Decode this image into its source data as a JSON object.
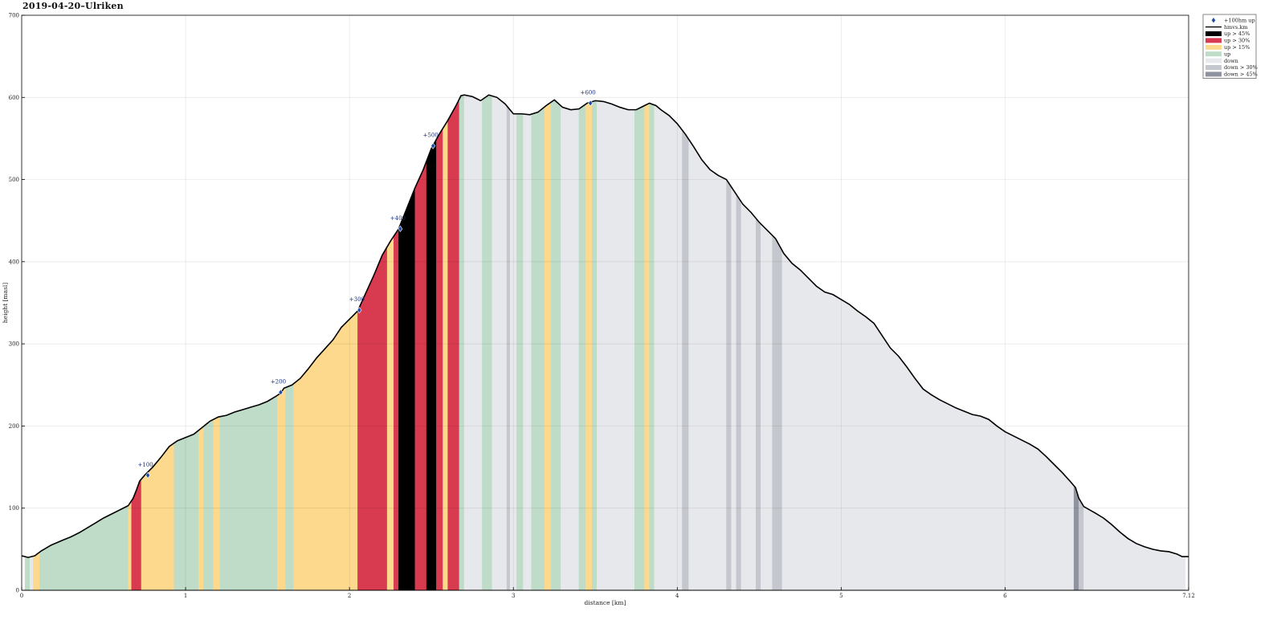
{
  "title": "2019-04-20–Ulriken",
  "chart_data": {
    "type": "area",
    "title": "2019-04-20–Ulriken",
    "xlabel": "distance [km]",
    "ylabel": "height [masl]",
    "xlim": [
      0,
      7.12
    ],
    "ylim": [
      0,
      700
    ],
    "xticks": [
      0,
      1,
      2,
      3,
      4,
      5,
      6,
      7.12
    ],
    "xtick_labels": [
      "0",
      "1",
      "2",
      "3",
      "4",
      "5",
      "6",
      "7.12"
    ],
    "yticks": [
      0,
      100,
      200,
      300,
      400,
      500,
      600,
      700
    ],
    "ytick_labels": [
      "0",
      "100",
      "200",
      "300",
      "400",
      "500",
      "600",
      "700"
    ],
    "grid": true,
    "legend_position": "top-right",
    "colors": {
      "up45": "#000000",
      "up30": "#d83a4f",
      "up15": "#fcd98c",
      "up": "#bedcc8",
      "down": "#e7e8ec",
      "down30": "#c4c7cd",
      "down45": "#8e939f",
      "marker": "#1f4aa8",
      "line": "#000000"
    },
    "legend": [
      {
        "label": "+100hm up",
        "kind": "marker"
      },
      {
        "label": "hmvs.km",
        "kind": "line"
      },
      {
        "label": "up > 45%",
        "kind": "up45"
      },
      {
        "label": "up > 30%",
        "kind": "up30"
      },
      {
        "label": "up > 15%",
        "kind": "up15"
      },
      {
        "label": "up",
        "kind": "up"
      },
      {
        "label": "down",
        "kind": "down"
      },
      {
        "label": "down > 30%",
        "kind": "down30"
      },
      {
        "label": "down > 45%",
        "kind": "down45"
      }
    ],
    "profile": [
      [
        0.0,
        42
      ],
      [
        0.04,
        40
      ],
      [
        0.08,
        42
      ],
      [
        0.12,
        48
      ],
      [
        0.18,
        55
      ],
      [
        0.25,
        61
      ],
      [
        0.3,
        65
      ],
      [
        0.35,
        70
      ],
      [
        0.4,
        76
      ],
      [
        0.45,
        82
      ],
      [
        0.5,
        88
      ],
      [
        0.55,
        93
      ],
      [
        0.6,
        98
      ],
      [
        0.65,
        103
      ],
      [
        0.68,
        112
      ],
      [
        0.7,
        122
      ],
      [
        0.72,
        133
      ],
      [
        0.75,
        140
      ],
      [
        0.8,
        150
      ],
      [
        0.85,
        162
      ],
      [
        0.9,
        175
      ],
      [
        0.95,
        182
      ],
      [
        1.0,
        186
      ],
      [
        1.05,
        190
      ],
      [
        1.1,
        198
      ],
      [
        1.15,
        206
      ],
      [
        1.2,
        211
      ],
      [
        1.25,
        213
      ],
      [
        1.3,
        217
      ],
      [
        1.35,
        220
      ],
      [
        1.4,
        223
      ],
      [
        1.45,
        226
      ],
      [
        1.5,
        230
      ],
      [
        1.55,
        236
      ],
      [
        1.58,
        240
      ],
      [
        1.6,
        246
      ],
      [
        1.65,
        250
      ],
      [
        1.7,
        258
      ],
      [
        1.75,
        270
      ],
      [
        1.8,
        283
      ],
      [
        1.85,
        294
      ],
      [
        1.9,
        305
      ],
      [
        1.95,
        320
      ],
      [
        2.0,
        330
      ],
      [
        2.05,
        340
      ],
      [
        2.1,
        362
      ],
      [
        2.15,
        384
      ],
      [
        2.2,
        408
      ],
      [
        2.25,
        425
      ],
      [
        2.3,
        440
      ],
      [
        2.35,
        465
      ],
      [
        2.4,
        490
      ],
      [
        2.45,
        512
      ],
      [
        2.5,
        538
      ],
      [
        2.55,
        556
      ],
      [
        2.6,
        572
      ],
      [
        2.65,
        590
      ],
      [
        2.68,
        602
      ],
      [
        2.7,
        603
      ],
      [
        2.75,
        601
      ],
      [
        2.8,
        596
      ],
      [
        2.85,
        603
      ],
      [
        2.9,
        600
      ],
      [
        2.95,
        592
      ],
      [
        3.0,
        580
      ],
      [
        3.05,
        580
      ],
      [
        3.1,
        579
      ],
      [
        3.15,
        582
      ],
      [
        3.2,
        590
      ],
      [
        3.25,
        597
      ],
      [
        3.3,
        588
      ],
      [
        3.35,
        585
      ],
      [
        3.4,
        586
      ],
      [
        3.45,
        593
      ],
      [
        3.5,
        596
      ],
      [
        3.55,
        595
      ],
      [
        3.6,
        592
      ],
      [
        3.65,
        588
      ],
      [
        3.7,
        585
      ],
      [
        3.75,
        585
      ],
      [
        3.8,
        590
      ],
      [
        3.83,
        593
      ],
      [
        3.87,
        590
      ],
      [
        3.9,
        585
      ],
      [
        3.95,
        578
      ],
      [
        4.0,
        568
      ],
      [
        4.05,
        555
      ],
      [
        4.1,
        540
      ],
      [
        4.15,
        524
      ],
      [
        4.2,
        512
      ],
      [
        4.25,
        505
      ],
      [
        4.3,
        500
      ],
      [
        4.35,
        485
      ],
      [
        4.4,
        470
      ],
      [
        4.45,
        460
      ],
      [
        4.5,
        448
      ],
      [
        4.55,
        438
      ],
      [
        4.6,
        428
      ],
      [
        4.65,
        410
      ],
      [
        4.7,
        398
      ],
      [
        4.75,
        390
      ],
      [
        4.8,
        380
      ],
      [
        4.85,
        370
      ],
      [
        4.9,
        363
      ],
      [
        4.95,
        360
      ],
      [
        5.0,
        354
      ],
      [
        5.05,
        348
      ],
      [
        5.1,
        340
      ],
      [
        5.15,
        333
      ],
      [
        5.2,
        325
      ],
      [
        5.25,
        310
      ],
      [
        5.3,
        295
      ],
      [
        5.35,
        285
      ],
      [
        5.4,
        272
      ],
      [
        5.45,
        258
      ],
      [
        5.5,
        245
      ],
      [
        5.55,
        238
      ],
      [
        5.6,
        232
      ],
      [
        5.65,
        227
      ],
      [
        5.7,
        222
      ],
      [
        5.75,
        218
      ],
      [
        5.8,
        214
      ],
      [
        5.85,
        212
      ],
      [
        5.9,
        208
      ],
      [
        5.95,
        200
      ],
      [
        6.0,
        193
      ],
      [
        6.05,
        188
      ],
      [
        6.1,
        183
      ],
      [
        6.15,
        178
      ],
      [
        6.2,
        172
      ],
      [
        6.25,
        163
      ],
      [
        6.3,
        153
      ],
      [
        6.35,
        143
      ],
      [
        6.4,
        132
      ],
      [
        6.43,
        125
      ],
      [
        6.45,
        112
      ],
      [
        6.48,
        102
      ],
      [
        6.55,
        94
      ],
      [
        6.6,
        88
      ],
      [
        6.65,
        80
      ],
      [
        6.7,
        71
      ],
      [
        6.75,
        63
      ],
      [
        6.8,
        57
      ],
      [
        6.85,
        53
      ],
      [
        6.9,
        50
      ],
      [
        6.95,
        48
      ],
      [
        7.0,
        47
      ],
      [
        7.05,
        44
      ],
      [
        7.08,
        41
      ],
      [
        7.12,
        41
      ]
    ],
    "segments": [
      [
        0.02,
        0.05,
        "up"
      ],
      [
        0.05,
        0.07,
        "down"
      ],
      [
        0.07,
        0.11,
        "up15"
      ],
      [
        0.11,
        0.65,
        "up"
      ],
      [
        0.65,
        0.67,
        "up15"
      ],
      [
        0.67,
        0.73,
        "up30"
      ],
      [
        0.73,
        0.93,
        "up15"
      ],
      [
        0.93,
        1.08,
        "up"
      ],
      [
        1.08,
        1.11,
        "up15"
      ],
      [
        1.11,
        1.17,
        "up"
      ],
      [
        1.17,
        1.21,
        "up15"
      ],
      [
        1.21,
        1.56,
        "up"
      ],
      [
        1.56,
        1.61,
        "up15"
      ],
      [
        1.61,
        1.66,
        "up"
      ],
      [
        1.66,
        2.05,
        "up15"
      ],
      [
        2.05,
        2.23,
        "up30"
      ],
      [
        2.23,
        2.27,
        "up15"
      ],
      [
        2.27,
        2.3,
        "up30"
      ],
      [
        2.3,
        2.4,
        "up45"
      ],
      [
        2.4,
        2.47,
        "up30"
      ],
      [
        2.47,
        2.53,
        "up45"
      ],
      [
        2.53,
        2.57,
        "up30"
      ],
      [
        2.57,
        2.6,
        "up15"
      ],
      [
        2.6,
        2.67,
        "up30"
      ],
      [
        2.67,
        2.7,
        "up"
      ],
      [
        2.7,
        2.81,
        "down"
      ],
      [
        2.81,
        2.87,
        "up"
      ],
      [
        2.87,
        2.96,
        "down"
      ],
      [
        2.96,
        2.98,
        "down30"
      ],
      [
        2.98,
        3.02,
        "down"
      ],
      [
        3.02,
        3.06,
        "up"
      ],
      [
        3.06,
        3.11,
        "down"
      ],
      [
        3.11,
        3.19,
        "up"
      ],
      [
        3.19,
        3.23,
        "up15"
      ],
      [
        3.23,
        3.29,
        "up"
      ],
      [
        3.29,
        3.4,
        "down"
      ],
      [
        3.4,
        3.44,
        "up"
      ],
      [
        3.44,
        3.48,
        "up15"
      ],
      [
        3.48,
        3.51,
        "up"
      ],
      [
        3.51,
        3.74,
        "down"
      ],
      [
        3.74,
        3.8,
        "up"
      ],
      [
        3.8,
        3.83,
        "up15"
      ],
      [
        3.83,
        3.86,
        "up"
      ],
      [
        3.86,
        4.03,
        "down"
      ],
      [
        4.03,
        4.07,
        "down30"
      ],
      [
        4.07,
        4.3,
        "down"
      ],
      [
        4.3,
        4.33,
        "down30"
      ],
      [
        4.33,
        4.36,
        "down"
      ],
      [
        4.36,
        4.39,
        "down30"
      ],
      [
        4.39,
        4.48,
        "down"
      ],
      [
        4.48,
        4.51,
        "down30"
      ],
      [
        4.51,
        4.58,
        "down"
      ],
      [
        4.58,
        4.64,
        "down30"
      ],
      [
        4.64,
        6.42,
        "down"
      ],
      [
        6.42,
        6.45,
        "down45"
      ],
      [
        6.45,
        6.48,
        "down30"
      ],
      [
        6.48,
        7.03,
        "down"
      ],
      [
        7.03,
        7.1,
        "down"
      ]
    ],
    "markers": [
      {
        "x": 0.77,
        "y": 140,
        "label": "+100"
      },
      {
        "x": 1.58,
        "y": 241,
        "label": "+200"
      },
      {
        "x": 2.06,
        "y": 341,
        "label": "+300"
      },
      {
        "x": 2.31,
        "y": 440,
        "label": "+400"
      },
      {
        "x": 2.51,
        "y": 541,
        "label": "+500"
      },
      {
        "x": 3.47,
        "y": 593,
        "label": "+600"
      }
    ]
  }
}
